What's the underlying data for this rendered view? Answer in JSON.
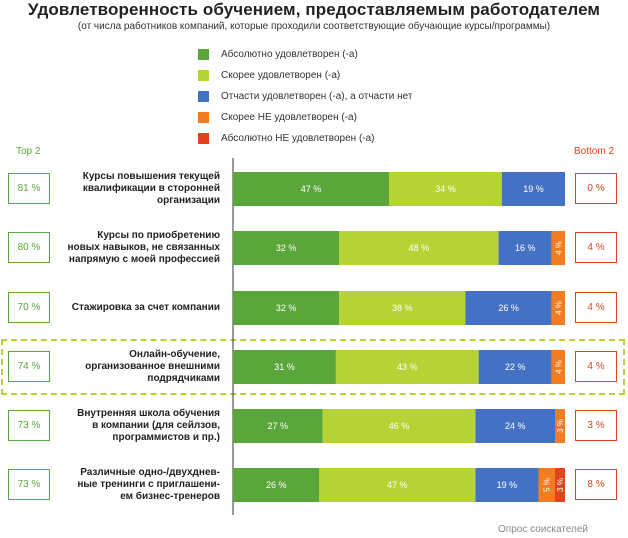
{
  "chart_data": {
    "type": "bar",
    "orientation": "horizontal",
    "stacked": true,
    "title": "Удовлетворенность обучением, предоставляемым работодателем",
    "subtitle": "(от числа работников компаний, которые проходили соответствующие обучающие курсы/программы)",
    "top_header": "Top 2",
    "bottom_header": "Bottom 2",
    "source": "Опрос соискателей",
    "highlighted_category_index": 3,
    "categories": [
      "Курсы повышения текущей квалификации в сторонней организации",
      "Курсы по приобретению новых навыков, не связанных напрямую с моей профессией",
      "Стажировка за счет компании",
      "Онлайн-обучение, организованное внешними подрядчиками",
      "Внутренняя школа обучения в компании (для сейлзов, программистов и пр.)",
      "Различные одно-/двухдневные тренинги с приглашением бизнес-тренеров"
    ],
    "category_lines": [
      [
        "Курсы повышения текущей",
        "квалификации в сторонней",
        "организации"
      ],
      [
        "Курсы по приобретению",
        "новых навыков, не связанных",
        "напрямую с моей профессией"
      ],
      [
        "Стажировка за счет компании"
      ],
      [
        "Онлайн-обучение,",
        "организованное внешними",
        "подрядчиками"
      ],
      [
        "Внутренняя школа обучения",
        "в компании (для сейлзов,",
        "программистов и пр.)"
      ],
      [
        "Различные одно-/двухднев-",
        "ные тренинги с приглашени-",
        "ем бизнес-тренеров"
      ]
    ],
    "top2_labels": [
      "81 %",
      "80 %",
      "70 %",
      "74 %",
      "73 %",
      "73 %"
    ],
    "bottom2_labels": [
      "0 %",
      "4 %",
      "4 %",
      "4 %",
      "3 %",
      "8 %"
    ],
    "series": [
      {
        "name": "Абсолютно удовлетворен (-а)",
        "color": "#5aa63a",
        "values": [
          47,
          32,
          32,
          31,
          27,
          26
        ],
        "labels": [
          "47 %",
          "32 %",
          "32 %",
          "31 %",
          "27 %",
          "26 %"
        ]
      },
      {
        "name": "Скорее удовлетворен (-а)",
        "color": "#b5d334",
        "values": [
          34,
          48,
          38,
          43,
          46,
          47
        ],
        "labels": [
          "34 %",
          "48 %",
          "38 %",
          "43 %",
          "46 %",
          "47 %"
        ]
      },
      {
        "name": "Отчасти удовлетворен (-а), а отчасти нет",
        "color": "#4471c4",
        "values": [
          19,
          16,
          26,
          22,
          24,
          19
        ],
        "labels": [
          "19 %",
          "16 %",
          "26 %",
          "22 %",
          "24 %",
          "19 %"
        ]
      },
      {
        "name": "Скорее НЕ удовлетворен (-а)",
        "color": "#f27c22",
        "values": [
          0,
          4,
          4,
          4,
          3,
          5
        ],
        "labels": [
          "",
          "4 %",
          "4 %",
          "4 %",
          "3 %",
          "5 %"
        ]
      },
      {
        "name": "Абсолютно НЕ удовлетворен (-а)",
        "color": "#e0441c",
        "values": [
          0,
          0,
          0,
          0,
          0,
          3
        ],
        "labels": [
          "",
          "",
          "",
          "",
          "",
          "3 %"
        ]
      }
    ],
    "xlim": [
      0,
      100
    ]
  }
}
